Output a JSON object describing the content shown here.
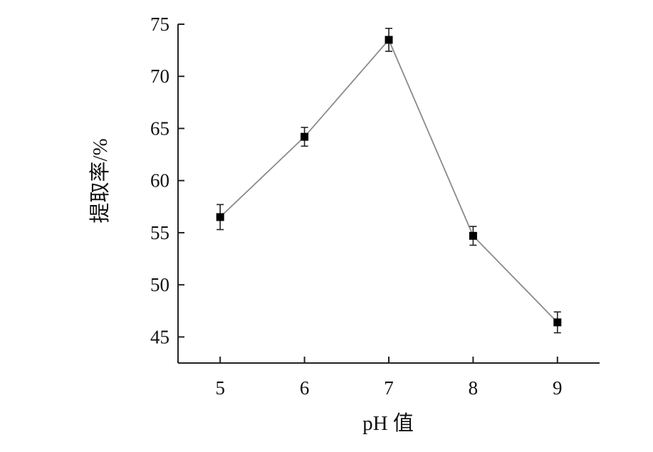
{
  "chart_data": {
    "type": "line",
    "title": "",
    "xlabel": "pH 值",
    "ylabel": "提取率/%",
    "x": [
      5,
      6,
      7,
      8,
      9
    ],
    "xticks": [
      "5",
      "6",
      "7",
      "8",
      "9"
    ],
    "yticks": [
      45,
      50,
      55,
      60,
      65,
      70,
      75
    ],
    "xlim": [
      4.5,
      9.5
    ],
    "ylim": [
      42.5,
      75
    ],
    "grid": false,
    "series": [
      {
        "values": [
          56.5,
          64.2,
          73.5,
          54.7,
          46.4
        ],
        "error": [
          1.2,
          0.9,
          1.1,
          0.9,
          1.0
        ],
        "marker": "square",
        "color": "#000000",
        "line_color": "#8a8a8a"
      }
    ]
  }
}
